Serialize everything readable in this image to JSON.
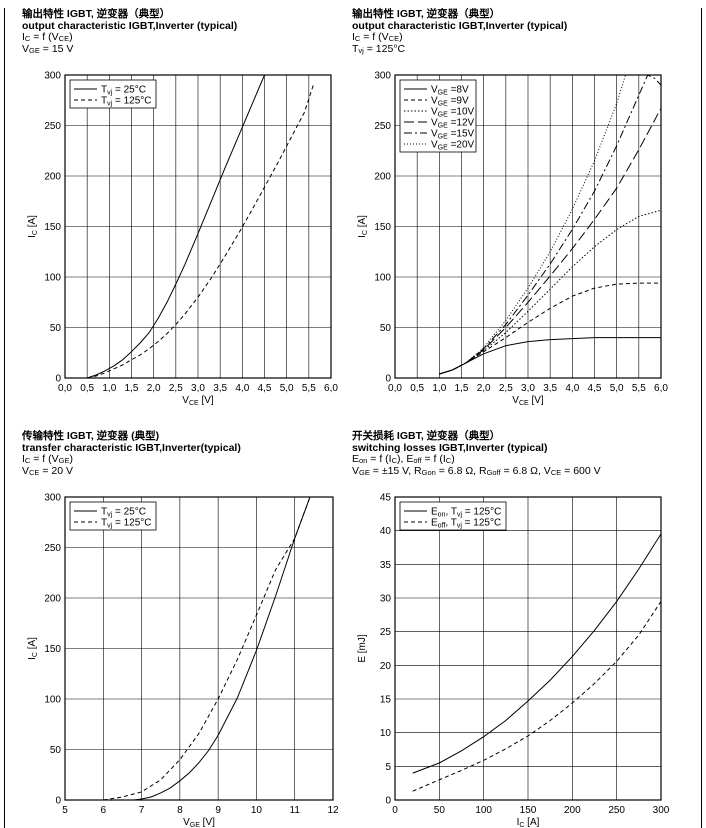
{
  "panels": [
    {
      "title_cn": "输出特性 IGBT, 逆变器（典型）",
      "title_en": "output characteristic IGBT,Inverter (typical)",
      "cond": [
        {
          "parts": [
            {
              "t": "I"
            },
            {
              "t": "C",
              "sub": true
            },
            {
              "t": " = f (V"
            },
            {
              "t": "CE",
              "sub": true
            },
            {
              "t": ")"
            }
          ]
        },
        {
          "parts": [
            {
              "t": "V"
            },
            {
              "t": "GE",
              "sub": true
            },
            {
              "t": " = 15 V"
            }
          ]
        }
      ]
    },
    {
      "title_cn": "输出特性 IGBT, 逆变器（典型）",
      "title_en": "output characteristic IGBT,Inverter (typical)",
      "cond": [
        {
          "parts": [
            {
              "t": "I"
            },
            {
              "t": "C",
              "sub": true
            },
            {
              "t": " = f (V"
            },
            {
              "t": "CE",
              "sub": true
            },
            {
              "t": ")"
            }
          ]
        },
        {
          "parts": [
            {
              "t": "T"
            },
            {
              "t": "vj",
              "sub": true
            },
            {
              "t": " = 125°C"
            }
          ]
        }
      ]
    },
    {
      "title_cn": "传输特性 IGBT, 逆变器 (典型)",
      "title_en": "transfer characteristic  IGBT,Inverter(typical)",
      "cond": [
        {
          "parts": [
            {
              "t": "I"
            },
            {
              "t": "C",
              "sub": true
            },
            {
              "t": " = f (V"
            },
            {
              "t": "GE",
              "sub": true
            },
            {
              "t": ")"
            }
          ]
        },
        {
          "parts": [
            {
              "t": "V"
            },
            {
              "t": "CE",
              "sub": true
            },
            {
              "t": " = 20 V"
            }
          ]
        }
      ]
    },
    {
      "title_cn": "开关损耗 IGBT, 逆变器（典型）",
      "title_en": "switching losses  IGBT,Inverter (typical)",
      "cond": [
        {
          "parts": [
            {
              "t": "E"
            },
            {
              "t": "on",
              "sub": true
            },
            {
              "t": " = f (I"
            },
            {
              "t": "C",
              "sub": true
            },
            {
              "t": "), E"
            },
            {
              "t": "off",
              "sub": true
            },
            {
              "t": " = f (I"
            },
            {
              "t": "C",
              "sub": true
            },
            {
              "t": ")"
            }
          ]
        },
        {
          "parts": [
            {
              "t": "V"
            },
            {
              "t": "GE",
              "sub": true
            },
            {
              "t": " = ±15 V, R"
            },
            {
              "t": "Gon",
              "sub": true
            },
            {
              "t": " = 6.8 Ω, R"
            },
            {
              "t": "Goff",
              "sub": true
            },
            {
              "t": " = 6.8 Ω, V"
            },
            {
              "t": "CE",
              "sub": true
            },
            {
              "t": " = 600 V"
            }
          ]
        }
      ]
    }
  ],
  "chart_data": [
    {
      "type": "line",
      "xlabel": {
        "main": "V",
        "sub": "CE",
        "unit": " [V]"
      },
      "ylabel": {
        "main": "I",
        "sub": "C",
        "unit": " [A]"
      },
      "xlim": [
        0,
        6
      ],
      "ylim": [
        0,
        300
      ],
      "grid": true,
      "legend": "top-left",
      "xticks": [
        0,
        0.5,
        1,
        1.5,
        2,
        2.5,
        3,
        3.5,
        4,
        4.5,
        5,
        5.5,
        6
      ],
      "xtick_labels": [
        "0,0",
        "0,5",
        "1,0",
        "1,5",
        "2,0",
        "2,5",
        "3,0",
        "3,5",
        "4,0",
        "4,5",
        "5,0",
        "5,5",
        "6,0"
      ],
      "yticks": [
        0,
        50,
        100,
        150,
        200,
        250,
        300
      ],
      "ytick_labels": [
        "0",
        "50",
        "100",
        "150",
        "200",
        "250",
        "300"
      ],
      "series": [
        {
          "legend": {
            "main": "T",
            "sub": "vj",
            "rest": " = 25°C"
          },
          "dash": "",
          "x": [
            0.5,
            0.7,
            0.9,
            1.1,
            1.3,
            1.5,
            1.7,
            1.9,
            2.1,
            2.3,
            2.5,
            2.7,
            3.0,
            3.3,
            3.6,
            3.9,
            4.2,
            4.5
          ],
          "y": [
            0,
            3,
            7,
            12,
            18,
            26,
            35,
            45,
            59,
            75,
            93,
            112,
            143,
            175,
            207,
            238,
            269,
            300
          ]
        },
        {
          "legend": {
            "main": "T",
            "sub": "vj",
            "rest": " = 125°C"
          },
          "dash": "4,3",
          "x": [
            0.5,
            0.7,
            0.9,
            1.1,
            1.3,
            1.5,
            1.7,
            1.9,
            2.1,
            2.3,
            2.5,
            2.7,
            3.0,
            3.3,
            3.6,
            3.9,
            4.2,
            4.5,
            4.8,
            5.1,
            5.4,
            5.6
          ],
          "y": [
            0,
            2,
            5,
            9,
            13,
            18,
            23,
            29,
            36,
            44,
            53,
            63,
            80,
            99,
            120,
            142,
            165,
            189,
            213,
            238,
            263,
            290
          ]
        }
      ]
    },
    {
      "type": "line",
      "xlabel": {
        "main": "V",
        "sub": "CE",
        "unit": " [V]"
      },
      "ylabel": {
        "main": "I",
        "sub": "C",
        "unit": " [A]"
      },
      "xlim": [
        0,
        6
      ],
      "ylim": [
        0,
        300
      ],
      "grid": true,
      "legend": "top-left",
      "xticks": [
        0,
        0.5,
        1,
        1.5,
        2,
        2.5,
        3,
        3.5,
        4,
        4.5,
        5,
        5.5,
        6
      ],
      "xtick_labels": [
        "0,0",
        "0,5",
        "1,0",
        "1,5",
        "2,0",
        "2,5",
        "3,0",
        "3,5",
        "4,0",
        "4,5",
        "5,0",
        "5,5",
        "6,0"
      ],
      "yticks": [
        0,
        50,
        100,
        150,
        200,
        250,
        300
      ],
      "ytick_labels": [
        "0",
        "50",
        "100",
        "150",
        "200",
        "250",
        "300"
      ],
      "series": [
        {
          "legend": {
            "main": "V",
            "sub": "GE",
            "rest": " =8V"
          },
          "dash": "",
          "x": [
            1.0,
            1.3,
            1.6,
            2.0,
            2.5,
            3.0,
            3.5,
            4.0,
            4.5,
            5.0,
            5.5,
            6.0
          ],
          "y": [
            4,
            8,
            15,
            24,
            32,
            36,
            38,
            39,
            40,
            40,
            40,
            40
          ]
        },
        {
          "legend": {
            "main": "V",
            "sub": "GE",
            "rest": " =9V"
          },
          "dash": "4,3",
          "x": [
            1.0,
            1.3,
            1.6,
            2.0,
            2.5,
            3.0,
            3.5,
            4.0,
            4.5,
            5.0,
            5.5,
            6.0
          ],
          "y": [
            4,
            8,
            15,
            26,
            40,
            55,
            69,
            81,
            89,
            93,
            94,
            94
          ]
        },
        {
          "legend": {
            "main": "V",
            "sub": "GE",
            "rest": " =10V"
          },
          "dash": "1.5,2",
          "x": [
            1.0,
            1.3,
            1.6,
            2.0,
            2.5,
            3.0,
            3.5,
            4.0,
            4.5,
            5.0,
            5.5,
            6.0
          ],
          "y": [
            4,
            8,
            15,
            27,
            45,
            66,
            88,
            110,
            130,
            147,
            160,
            166
          ]
        },
        {
          "legend": {
            "main": "V",
            "sub": "GE",
            "rest": " =12V"
          },
          "dash": "10,4",
          "x": [
            1.0,
            1.3,
            1.6,
            2.0,
            2.5,
            3.0,
            3.5,
            4.0,
            4.5,
            5.0,
            5.5,
            6.0
          ],
          "y": [
            4,
            8,
            15,
            28,
            50,
            75,
            101,
            128,
            157,
            188,
            226,
            267
          ]
        },
        {
          "legend": {
            "main": "V",
            "sub": "GE",
            "rest": " =15V"
          },
          "dash": "8,3,2,3",
          "x": [
            1.0,
            1.3,
            1.6,
            2.0,
            2.5,
            3.0,
            3.5,
            4.0,
            4.5,
            5.0,
            5.5,
            5.7,
            5.85,
            6.0
          ],
          "y": [
            4,
            8,
            15,
            29,
            53,
            82,
            113,
            147,
            185,
            230,
            280,
            300,
            297,
            290
          ]
        },
        {
          "legend": {
            "main": "V",
            "sub": "GE",
            "rest": " =20V"
          },
          "dash": "1,2",
          "x": [
            1.0,
            1.3,
            1.6,
            2.0,
            2.5,
            3.0,
            3.5,
            4.0,
            4.5,
            5.0,
            5.2
          ],
          "y": [
            4,
            8,
            15,
            30,
            57,
            89,
            125,
            167,
            215,
            272,
            300
          ]
        }
      ]
    },
    {
      "type": "line",
      "xlabel": {
        "main": "V",
        "sub": "GE",
        "unit": " [V]"
      },
      "ylabel": {
        "main": "I",
        "sub": "C",
        "unit": " [A]"
      },
      "xlim": [
        5,
        12
      ],
      "ylim": [
        0,
        300
      ],
      "grid": true,
      "legend": "top-left",
      "xticks": [
        5,
        6,
        7,
        8,
        9,
        10,
        11,
        12
      ],
      "xtick_labels": [
        "5",
        "6",
        "7",
        "8",
        "9",
        "10",
        "11",
        "12"
      ],
      "yticks": [
        0,
        50,
        100,
        150,
        200,
        250,
        300
      ],
      "ytick_labels": [
        "0",
        "50",
        "100",
        "150",
        "200",
        "250",
        "300"
      ],
      "series": [
        {
          "legend": {
            "main": "T",
            "sub": "vj",
            "rest": " = 25°C"
          },
          "dash": "",
          "x": [
            6.8,
            7.0,
            7.25,
            7.5,
            7.75,
            8.0,
            8.25,
            8.5,
            8.75,
            9.0,
            9.5,
            10.0,
            10.5,
            11.0,
            11.4
          ],
          "y": [
            0,
            1,
            3,
            7,
            12,
            19,
            27,
            37,
            49,
            64,
            101,
            148,
            202,
            259,
            300
          ]
        },
        {
          "legend": {
            "main": "T",
            "sub": "vj",
            "rest": " = 125°C"
          },
          "dash": "4,3",
          "x": [
            6.0,
            6.5,
            7.0,
            7.5,
            8.0,
            8.5,
            9.0,
            9.5,
            10.0,
            10.5,
            11.0,
            11.4
          ],
          "y": [
            0,
            3,
            8,
            20,
            40,
            66,
            100,
            139,
            183,
            228,
            259,
            300
          ]
        }
      ]
    },
    {
      "type": "line",
      "xlabel": {
        "main": "I",
        "sub": "C",
        "unit": " [A]"
      },
      "ylabel": {
        "main": "E [mJ]",
        "sub": "",
        "unit": ""
      },
      "xlim": [
        0,
        300
      ],
      "ylim": [
        0,
        45
      ],
      "grid": true,
      "legend": "top-left",
      "xticks": [
        0,
        50,
        100,
        150,
        200,
        250,
        300
      ],
      "xtick_labels": [
        "0",
        "50",
        "100",
        "150",
        "200",
        "250",
        "300"
      ],
      "yticks": [
        0,
        5,
        10,
        15,
        20,
        25,
        30,
        35,
        40,
        45
      ],
      "ytick_labels": [
        "0",
        "5",
        "10",
        "15",
        "20",
        "25",
        "30",
        "35",
        "40",
        "45"
      ],
      "series": [
        {
          "legend": {
            "main": "E",
            "sub": "on",
            "rest": ", T",
            "sub2": "vj",
            "rest2": " = 125°C"
          },
          "dash": "",
          "x": [
            20,
            50,
            75,
            100,
            125,
            150,
            175,
            200,
            225,
            250,
            275,
            300
          ],
          "y": [
            4.0,
            5.5,
            7.3,
            9.4,
            11.8,
            14.7,
            17.8,
            21.3,
            25.2,
            29.5,
            34.3,
            39.5
          ]
        },
        {
          "legend": {
            "main": "E",
            "sub": "off",
            "rest": ", T",
            "sub2": "vj",
            "rest2": " = 125°C"
          },
          "dash": "4,3",
          "x": [
            20,
            50,
            75,
            100,
            125,
            150,
            175,
            200,
            225,
            250,
            275,
            300
          ],
          "y": [
            1.3,
            3.0,
            4.4,
            5.9,
            7.6,
            9.5,
            11.8,
            14.4,
            17.3,
            20.6,
            24.5,
            29.5
          ]
        }
      ]
    }
  ]
}
